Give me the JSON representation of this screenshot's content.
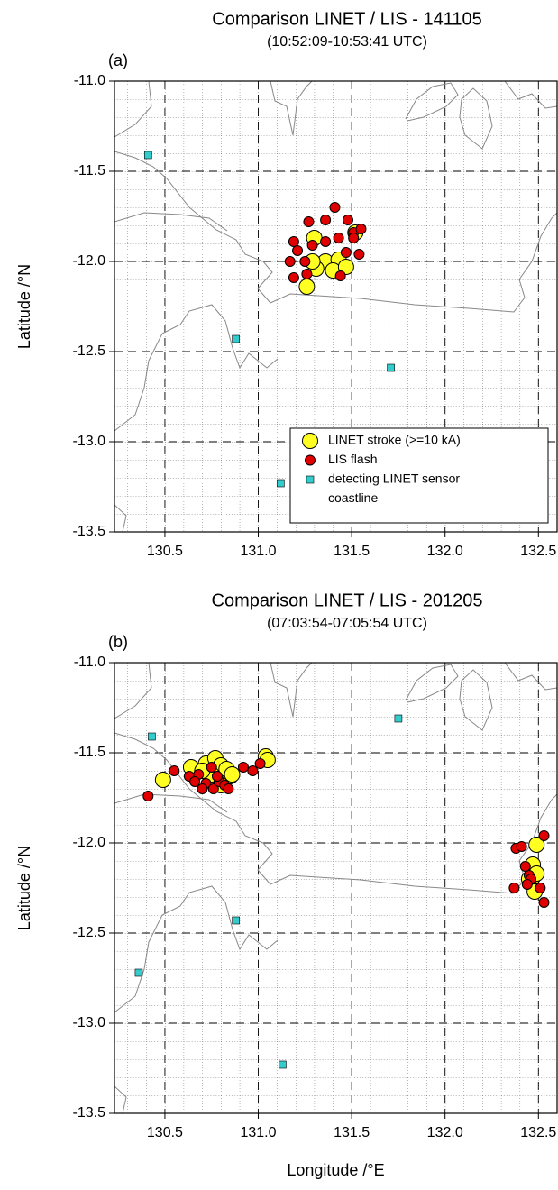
{
  "chart_data": [
    {
      "type": "scatter",
      "title": "Comparison LINET / LIS - 141105",
      "subtitle": "(10:52:09-10:53:41 UTC)",
      "panel": "(a)",
      "ylabel": "Latitude /°N",
      "xlim": [
        130.23,
        132.6
      ],
      "ylim": [
        -13.5,
        -11.0
      ],
      "xticks": [
        130.5,
        {
          "value": 131.0,
          "label": "131.0"
        },
        131.5,
        {
          "value": 132.0,
          "label": "132.0"
        },
        132.5
      ],
      "yticks": [
        {
          "value": -11.0,
          "label": "-11.0"
        },
        -11.5,
        {
          "value": -12.0,
          "label": "-12.0"
        },
        -12.5,
        {
          "value": -13.0,
          "label": "-13.0"
        },
        -13.5
      ],
      "grid": true,
      "minor_grid": 0.1,
      "legend": "lower right",
      "coastline": {
        "name": "coastline",
        "color": "#888888"
      },
      "series": [
        {
          "name": "LINET stroke (>=10 kA)",
          "color": "#ffff22",
          "marker": "circle-large",
          "x": [
            131.3,
            131.52,
            131.36,
            131.43,
            131.31,
            131.4,
            131.47,
            131.26,
            131.29
          ],
          "values": [
            -11.87,
            -11.84,
            -12.0,
            -11.99,
            -12.04,
            -12.05,
            -12.03,
            -12.14,
            -12.0
          ]
        },
        {
          "name": "LIS flash",
          "color": "#e00000",
          "marker": "circle",
          "x": [
            131.27,
            131.36,
            131.41,
            131.48,
            131.51,
            131.55,
            131.54,
            131.47,
            131.43,
            131.36,
            131.19,
            131.21,
            131.29,
            131.17,
            131.25,
            131.19,
            131.26,
            131.44,
            131.51
          ],
          "values": [
            -11.78,
            -11.77,
            -11.7,
            -11.77,
            -11.84,
            -11.82,
            -11.96,
            -11.95,
            -11.87,
            -11.89,
            -11.89,
            -11.94,
            -11.91,
            -12.0,
            -12.0,
            -12.09,
            -12.07,
            -12.08,
            -11.87
          ]
        },
        {
          "name": "detecting LINET sensor",
          "color": "#33cccc",
          "marker": "square",
          "x": [
            130.41,
            130.88,
            131.71,
            131.12
          ],
          "values": [
            -11.41,
            -12.43,
            -12.59,
            -13.23
          ]
        }
      ]
    },
    {
      "type": "scatter",
      "title": "Comparison LINET / LIS - 201205",
      "subtitle": "(07:03:54-07:05:54 UTC)",
      "panel": "(b)",
      "ylabel": "Latitude /°N",
      "xlabel": "Longitude /°E",
      "xlim": [
        130.23,
        132.6
      ],
      "ylim": [
        -13.5,
        -11.0
      ],
      "xticks": [
        130.5,
        {
          "value": 131.0,
          "label": "131.0"
        },
        131.5,
        {
          "value": 132.0,
          "label": "132.0"
        },
        132.5
      ],
      "yticks": [
        {
          "value": -11.0,
          "label": "-11.0"
        },
        -11.5,
        {
          "value": -12.0,
          "label": "-12.0"
        },
        -12.5,
        {
          "value": -13.0,
          "label": "-13.0"
        },
        -13.5
      ],
      "grid": true,
      "minor_grid": 0.1,
      "series": [
        {
          "name": "LINET stroke (>=10 kA)",
          "color": "#ffff22",
          "marker": "circle-large",
          "x": [
            130.49,
            130.64,
            130.72,
            130.77,
            130.8,
            130.85,
            130.83,
            130.8,
            130.86,
            130.75,
            131.04,
            131.05,
            130.7,
            132.49,
            132.47,
            132.47,
            132.45,
            132.48,
            132.49
          ],
          "values": [
            -11.65,
            -11.58,
            -11.56,
            -11.53,
            -11.57,
            -11.63,
            -11.59,
            -11.68,
            -11.62,
            -11.62,
            -11.52,
            -11.54,
            -11.6,
            -12.01,
            -12.12,
            -12.19,
            -12.2,
            -12.27,
            -12.17
          ]
        },
        {
          "name": "LIS flash",
          "color": "#e00000",
          "marker": "circle",
          "x": [
            130.41,
            130.55,
            130.63,
            130.68,
            130.72,
            130.76,
            130.79,
            130.7,
            130.82,
            130.75,
            130.84,
            130.92,
            130.97,
            131.01,
            130.66,
            130.78,
            132.38,
            132.41,
            132.45,
            132.53,
            132.51,
            132.53,
            132.37,
            132.46,
            132.43,
            132.44
          ],
          "values": [
            -11.74,
            -11.6,
            -11.63,
            -11.62,
            -11.67,
            -11.7,
            -11.66,
            -11.7,
            -11.68,
            -11.58,
            -11.7,
            -11.58,
            -11.6,
            -11.56,
            -11.66,
            -11.63,
            -12.03,
            -12.02,
            -12.18,
            -11.96,
            -12.25,
            -12.33,
            -12.25,
            -12.2,
            -12.13,
            -12.23
          ]
        },
        {
          "name": "detecting LINET sensor",
          "color": "#33cccc",
          "marker": "square",
          "x": [
            130.43,
            131.75,
            130.88,
            130.36,
            131.13
          ],
          "values": [
            -11.41,
            -11.31,
            -12.43,
            -12.72,
            -13.23
          ]
        }
      ]
    }
  ]
}
